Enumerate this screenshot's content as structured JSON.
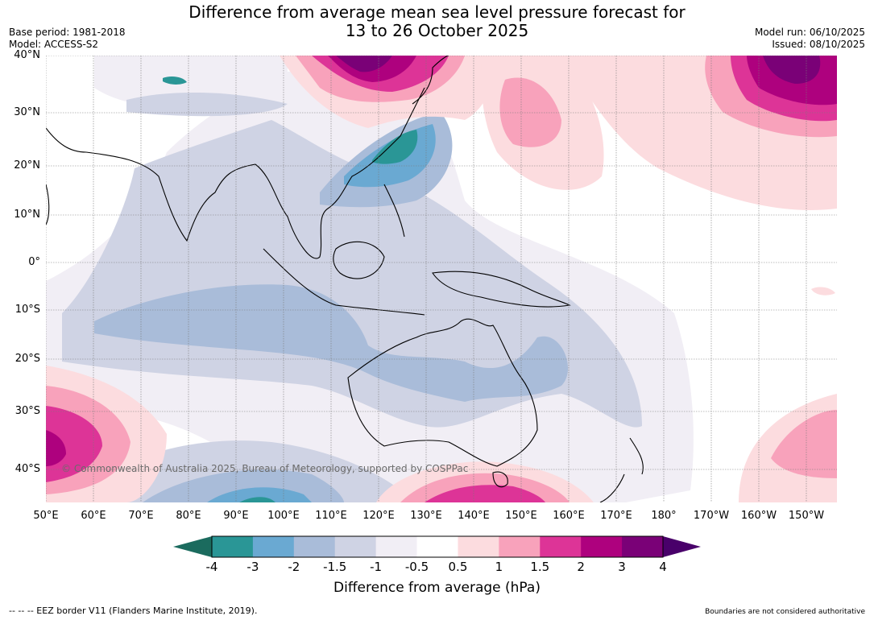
{
  "title": {
    "line1": "Difference from average mean sea level pressure forecast for",
    "line2": "13 to 26 October 2025"
  },
  "meta": {
    "base_period": "Base period: 1981-2018",
    "model": "Model: ACCESS-S2",
    "model_run": "Model run: 06/10/2025",
    "issued": "Issued: 08/10/2025"
  },
  "map": {
    "lat_labels": [
      "40°N",
      "30°N",
      "20°N",
      "10°N",
      "0°",
      "10°S",
      "20°S",
      "30°S",
      "40°S"
    ],
    "lon_labels": [
      "50°E",
      "60°E",
      "70°E",
      "80°E",
      "90°E",
      "100°E",
      "110°E",
      "120°E",
      "130°E",
      "140°E",
      "150°E",
      "160°E",
      "170°E",
      "180°",
      "170°W",
      "160°W",
      "150°W"
    ],
    "copyright": "© Commonwealth of Australia 2025, Bureau of Meteorology, supported by COSPPac"
  },
  "legend": {
    "ticks": [
      "-4",
      "-3",
      "-2",
      "-1.5",
      "-1",
      "-0.5",
      "0.5",
      "1",
      "1.5",
      "2",
      "3",
      "4"
    ],
    "colors": [
      "#1b6b5e",
      "#2a9696",
      "#6aa9d2",
      "#a9bcd9",
      "#cfd3e4",
      "#f1eef5",
      "#ffffff",
      "#fcdcdf",
      "#f8a2bb",
      "#dd3497",
      "#ae017e",
      "#7a0177",
      "#49006a"
    ],
    "label": "Difference from average (hPa)"
  },
  "footer": {
    "eez": "--  --  -- EEZ border V11 (Flanders Marine Institute, 2019).",
    "disclaimer": "Boundaries are not considered authoritative"
  }
}
